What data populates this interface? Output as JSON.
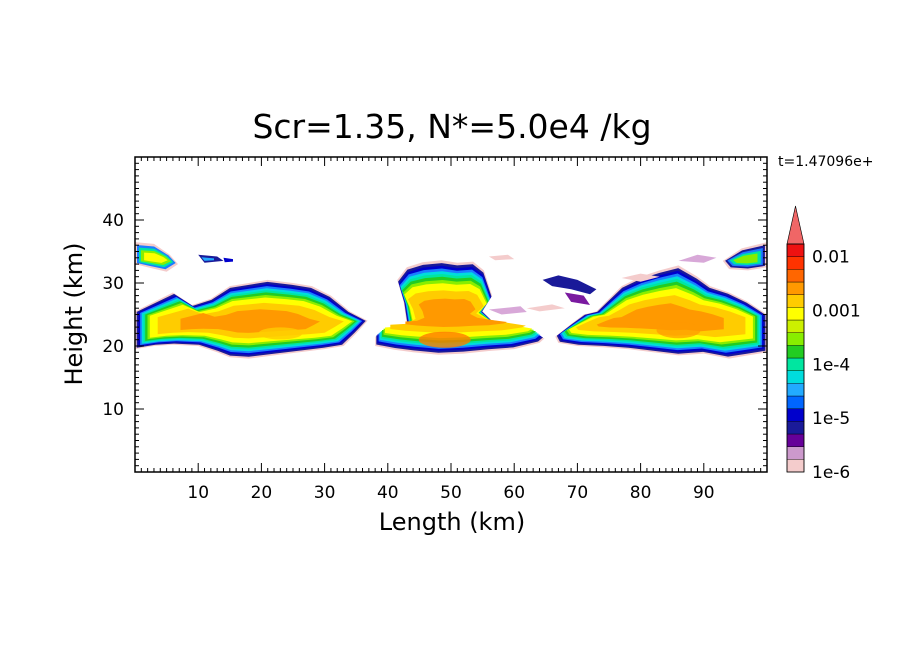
{
  "chart_data": {
    "type": "heatmap",
    "title": "Scr=1.35, N*=5.0e4 /kg",
    "xlabel": "Length  (km)",
    "ylabel": "Height  (km)",
    "time_label": "t=1.47096e+",
    "xlim": [
      0,
      100
    ],
    "ylim": [
      0,
      50
    ],
    "xticks": [
      10,
      20,
      30,
      40,
      50,
      60,
      70,
      80,
      90
    ],
    "yticks": [
      10,
      20,
      30,
      40
    ],
    "colorbar": {
      "labels": [
        "0.01",
        "0.001",
        "1e-4",
        "1e-5",
        "1e-6"
      ],
      "label_values": [
        0.01,
        0.001,
        0.0001,
        1e-05,
        1e-06
      ],
      "scale": "log",
      "colors": [
        "#f4cccc",
        "#cc99cc",
        "#660099",
        "#1a1a99",
        "#0000cc",
        "#0066ff",
        "#22aaff",
        "#00dddd",
        "#00e6a0",
        "#22cc22",
        "#88ee00",
        "#ccf000",
        "#ffff00",
        "#ffcc00",
        "#ff9900",
        "#ff6600",
        "#ff3300",
        "#ee1111",
        "#f06666"
      ]
    },
    "clouds": [
      {
        "name": "left",
        "x_range": [
          0,
          37
        ],
        "y_range": [
          18,
          37
        ],
        "peak": "0.001"
      },
      {
        "name": "center",
        "x_range": [
          38,
          65
        ],
        "y_range": [
          19,
          34
        ],
        "peak": "0.001"
      },
      {
        "name": "right",
        "x_range": [
          66,
          100
        ],
        "y_range": [
          18,
          37
        ],
        "peak": "0.001"
      }
    ]
  }
}
